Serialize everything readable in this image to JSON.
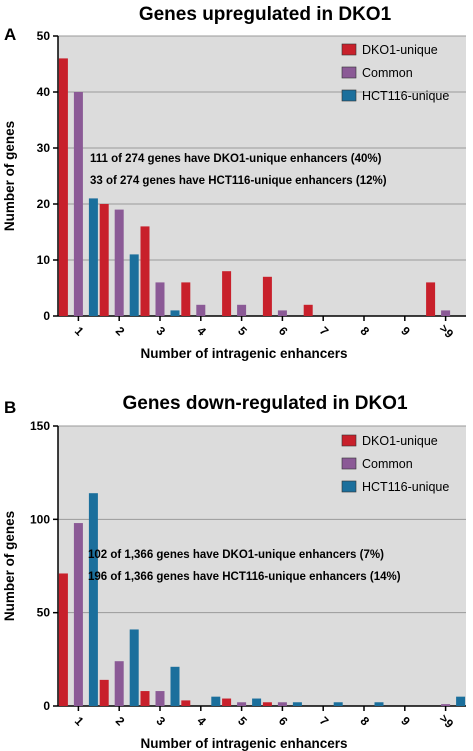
{
  "colors": {
    "dko1_unique": "#c8202b",
    "common": "#8b5a96",
    "hct116_unique": "#1b6f9c",
    "plot_background": "#dcdcdc",
    "gridline": "#9a9a9a"
  },
  "chart_data": [
    {
      "panel_label": "A",
      "type": "bar",
      "title": "Genes upregulated in DKO1",
      "xlabel": "Number of intragenic enhancers",
      "ylabel": "Number of genes",
      "categories": [
        "1",
        "2",
        "3",
        "4",
        "5",
        "6",
        "7",
        "8",
        "9",
        ">9"
      ],
      "series": [
        {
          "name": "DKO1-unique",
          "values": [
            46,
            20,
            16,
            6,
            8,
            7,
            2,
            0,
            0,
            6
          ]
        },
        {
          "name": "Common",
          "values": [
            40,
            19,
            6,
            2,
            2,
            1,
            0,
            0,
            0,
            1
          ]
        },
        {
          "name": "HCT116-unique",
          "values": [
            21,
            11,
            1,
            0,
            0,
            0,
            0,
            0,
            0,
            0
          ]
        }
      ],
      "ylim": [
        0,
        50
      ],
      "yticks": [
        0,
        10,
        20,
        30,
        40,
        50
      ],
      "grid": true,
      "legend_position": "top-right",
      "annotations": [
        "111 of 274 genes have DKO1-unique enhancers (40%)",
        "33 of 274 genes have HCT116-unique enhancers (12%)"
      ]
    },
    {
      "panel_label": "B",
      "type": "bar",
      "title": "Genes down-regulated in DKO1",
      "xlabel": "Number of intragenic enhancers",
      "ylabel": "Number of genes",
      "categories": [
        "1",
        "2",
        "3",
        "4",
        "5",
        "6",
        "7",
        "8",
        "9",
        ">9"
      ],
      "series": [
        {
          "name": "DKO1-unique",
          "values": [
            71,
            14,
            8,
            3,
            4,
            2,
            0,
            0,
            0,
            0
          ]
        },
        {
          "name": "Common",
          "values": [
            98,
            24,
            8,
            0,
            2,
            2,
            0,
            0,
            0,
            1
          ]
        },
        {
          "name": "HCT116-unique",
          "values": [
            114,
            41,
            21,
            5,
            4,
            2,
            2,
            2,
            0,
            5
          ]
        }
      ],
      "ylim": [
        0,
        150
      ],
      "yticks": [
        0,
        50,
        100,
        150
      ],
      "grid": true,
      "legend_position": "top-right",
      "annotations": [
        "102 of 1,366 genes have DKO1-unique enhancers (7%)",
        "196 of 1,366 genes have HCT116-unique enhancers (14%)"
      ]
    }
  ]
}
